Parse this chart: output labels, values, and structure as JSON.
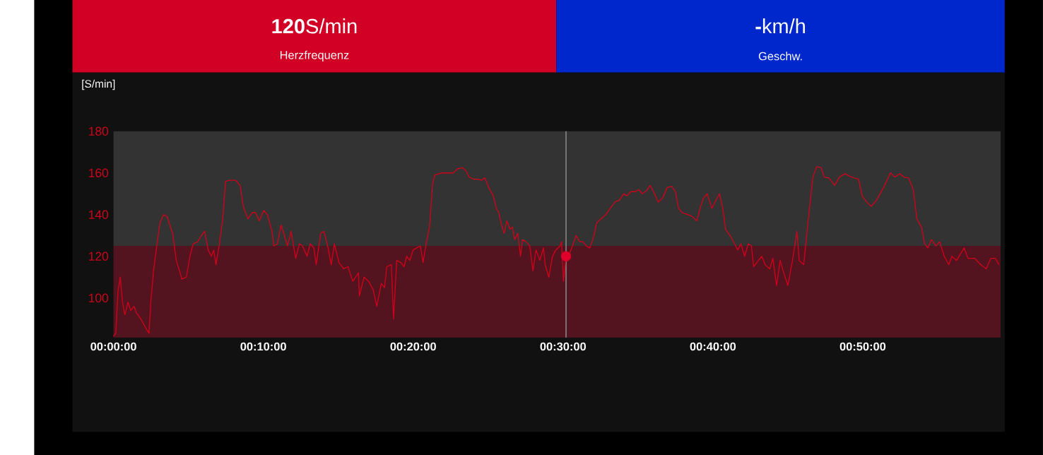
{
  "chart_data": {
    "type": "line",
    "ylabel": "[S/min]",
    "annotations": [
      "**120**S/min",
      "Herzfrequenz",
      "**-**km/h",
      "Geschw."
    ],
    "xlim": [
      0,
      59.2
    ],
    "ylim": [
      81,
      180
    ],
    "xticks": [
      {
        "value": 0,
        "label": "00:00:00"
      },
      {
        "value": 10,
        "label": "00:10:00"
      },
      {
        "value": 20,
        "label": "00:20:00"
      },
      {
        "value": 30,
        "label": "00:30:00"
      },
      {
        "value": 40,
        "label": "00:40:00"
      },
      {
        "value": 50,
        "label": "00:50:00"
      }
    ],
    "yticks": [
      100,
      120,
      140,
      160,
      180
    ],
    "bands": [
      {
        "axis": "y",
        "from": 81,
        "to": 125,
        "color": "#53141f"
      },
      {
        "axis": "y",
        "from": 125,
        "to": 180,
        "color": "#333333"
      }
    ],
    "ref_lines": [
      {
        "axis": "x",
        "value": 30.2,
        "color": "#8a8a8a"
      }
    ],
    "series": [
      {
        "color": "#d0021b",
        "x": [
          0,
          0.15,
          0.3,
          0.45,
          0.6,
          0.76,
          0.97,
          1.15,
          1.37,
          1.52,
          1.82,
          2.13,
          2.37,
          2.49,
          2.67,
          2.89,
          3.1,
          3.34,
          3.59,
          3.8,
          3.95,
          4.19,
          4.41,
          4.56,
          4.86,
          5.1,
          5.32,
          5.62,
          5.87,
          6.08,
          6.32,
          6.53,
          6.69,
          6.84,
          7.05,
          7.29,
          7.48,
          7.75,
          8.15,
          8.45,
          8.66,
          8.97,
          9.27,
          9.48,
          9.73,
          10.03,
          10.27,
          10.58,
          10.7,
          10.94,
          11.19,
          11.4,
          11.61,
          11.85,
          12.16,
          12.4,
          12.61,
          12.92,
          13.13,
          13.37,
          13.53,
          13.83,
          14.04,
          14.29,
          14.53,
          14.74,
          15.05,
          15.35,
          15.65,
          15.96,
          16.35,
          16.41,
          16.72,
          17.02,
          17.33,
          17.57,
          17.87,
          18.09,
          18.24,
          18.54,
          18.69,
          18.9,
          19.18,
          19.39,
          19.57,
          19.78,
          19.99,
          20.24,
          20.48,
          20.66,
          20.84,
          21.09,
          21.3,
          21.45,
          21.91,
          22.36,
          22.67,
          22.97,
          23.28,
          23.52,
          23.73,
          24.04,
          24.34,
          24.55,
          24.79,
          25.04,
          25.34,
          25.55,
          25.71,
          25.86,
          26.07,
          26.25,
          26.47,
          26.62,
          26.77,
          26.98,
          27.16,
          27.29,
          27.53,
          27.78,
          27.99,
          28.2,
          28.45,
          28.69,
          28.81,
          29.05,
          29.3,
          29.51,
          29.81,
          29.9,
          30.03,
          30.2,
          30.42,
          30.63,
          30.87,
          31.11,
          31.33,
          31.54,
          31.78,
          32.03,
          32.24,
          32.54,
          32.85,
          33.15,
          33.46,
          33.76,
          34.06,
          34.28,
          34.52,
          34.82,
          35.06,
          35.28,
          35.58,
          35.8,
          36.04,
          36.35,
          36.65,
          36.95,
          37.26,
          37.5,
          37.71,
          37.93,
          38.32,
          38.63,
          38.93,
          39.14,
          39.38,
          39.62,
          39.93,
          40.14,
          40.44,
          40.66,
          40.84,
          41.14,
          41.45,
          41.66,
          41.87,
          42.12,
          42.36,
          42.57,
          42.72,
          43.03,
          43.27,
          43.48,
          43.79,
          44.0,
          44.25,
          44.49,
          44.73,
          45.0,
          45.31,
          45.61,
          45.76,
          46.06,
          46.37,
          46.67,
          46.92,
          47.22,
          47.43,
          47.74,
          48.13,
          48.44,
          48.8,
          49.26,
          49.72,
          49.96,
          50.26,
          50.57,
          50.93,
          51.39,
          51.85,
          52.15,
          52.46,
          52.76,
          53.06,
          53.37,
          53.61,
          53.92,
          54.13,
          54.34,
          54.59,
          54.89,
          55.13,
          55.44,
          55.74,
          55.95,
          56.26,
          56.77,
          57.02,
          57.47,
          57.87,
          58.24,
          58.54,
          58.85,
          59.09
        ],
        "values": [
          81.6,
          83,
          103,
          110,
          98,
          92,
          98,
          94,
          96,
          93,
          90,
          86,
          83,
          98,
          113,
          125,
          136,
          140,
          139,
          134,
          131,
          118,
          113,
          109,
          110,
          120,
          126,
          127,
          130,
          132,
          123,
          120,
          123,
          116,
          125,
          138,
          156,
          156.5,
          156.5,
          154,
          144,
          138,
          141,
          141,
          137,
          142,
          140,
          132,
          125,
          126,
          135,
          130,
          125,
          132,
          119,
          126,
          125,
          120,
          126,
          124,
          116,
          131,
          132,
          125,
          116,
          126,
          117,
          114,
          115,
          108,
          112,
          101,
          110,
          108,
          104,
          96,
          107,
          105,
          115,
          116,
          90,
          118,
          117,
          115,
          120,
          118,
          123,
          124,
          125,
          117,
          125,
          134,
          155,
          159,
          160,
          160,
          160,
          162,
          162.5,
          161,
          158,
          157,
          157,
          156.5,
          157.6,
          153,
          149,
          143,
          141,
          136,
          131,
          137,
          133,
          134,
          128,
          131,
          120,
          128,
          127,
          125,
          113,
          123,
          118,
          124,
          116,
          110,
          120,
          123,
          125,
          127,
          108,
          120,
          121,
          125,
          130,
          127,
          127,
          125,
          124,
          129,
          136,
          138,
          140,
          143,
          146,
          147,
          150,
          149,
          151,
          151,
          152,
          150,
          151.5,
          154,
          151,
          146,
          148,
          153,
          153.5,
          151,
          143,
          141,
          140,
          139,
          137,
          143,
          148,
          150,
          143,
          146,
          150,
          143,
          133,
          130,
          126,
          123,
          126,
          120,
          126,
          125,
          115,
          118,
          120,
          116,
          114,
          119,
          106,
          118,
          112,
          106,
          118,
          132,
          118,
          116,
          138,
          158,
          163,
          162.5,
          158,
          157.6,
          154,
          158,
          159.6,
          158,
          157,
          149,
          146,
          144,
          147,
          153,
          160,
          158,
          159.6,
          158,
          157.6,
          152,
          138,
          134,
          126,
          124,
          128,
          125,
          127,
          120,
          116,
          120,
          118,
          124,
          119,
          119,
          116,
          114,
          119,
          119,
          116
        ]
      },
      {
        "type": "scatter",
        "marker": "circle",
        "color": "#e0002a",
        "x": [
          30.2
        ],
        "values": [
          120
        ]
      }
    ]
  }
}
